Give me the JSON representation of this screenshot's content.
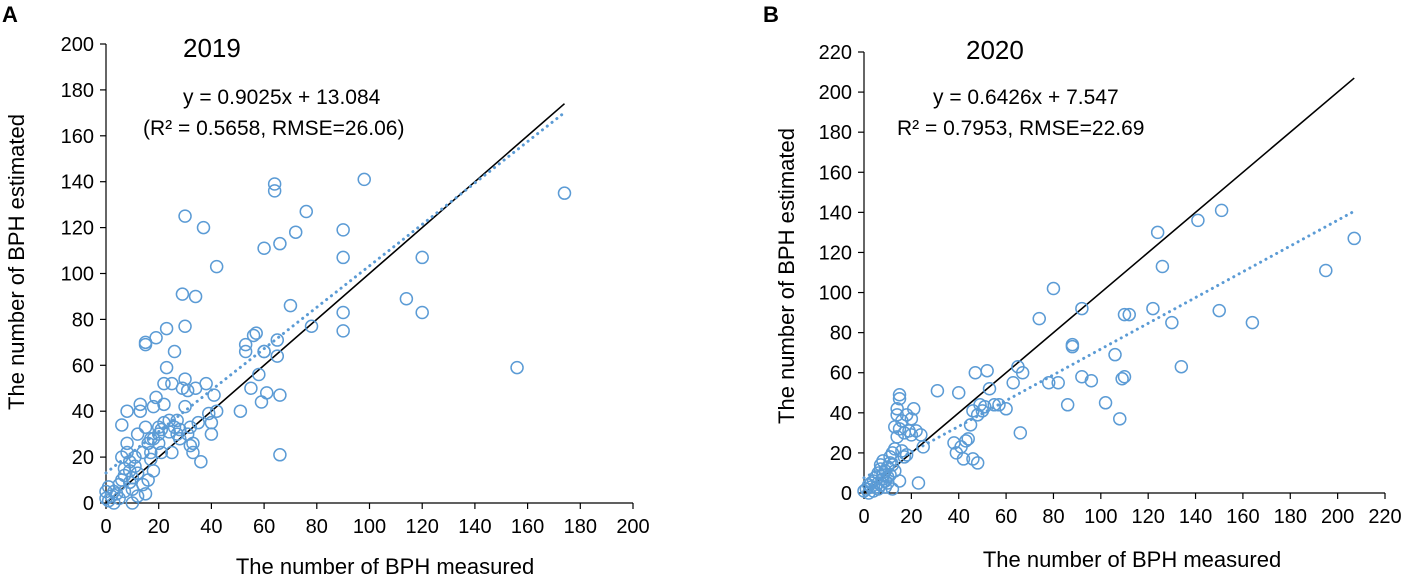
{
  "colors": {
    "marker": "#5b9bd5",
    "identity_line": "#000000",
    "axis": "#000000"
  },
  "chart_data": [
    {
      "type": "scatter",
      "panel": "A",
      "title": "2019",
      "xlabel": "The number of BPH measured",
      "ylabel": "The number of BPH estimated",
      "xlim": [
        0,
        200
      ],
      "ylim": [
        0,
        200
      ],
      "xticks": [
        "0",
        "20",
        "40",
        "60",
        "80",
        "100",
        "120",
        "140",
        "160",
        "180",
        "200"
      ],
      "yticks": [
        "0",
        "20",
        "40",
        "60",
        "80",
        "100",
        "120",
        "140",
        "160",
        "180",
        "200"
      ],
      "equation": "y = 0.9025x + 13.084",
      "stats": "(R² = 0.5658, RMSE=26.06)",
      "trend": {
        "slope": 0.9025,
        "intercept": 13.084,
        "x_range": [
          0,
          174
        ]
      },
      "identity": {
        "x_range": [
          0,
          174
        ]
      },
      "points": [
        [
          0,
          2
        ],
        [
          0,
          5
        ],
        [
          1,
          7
        ],
        [
          1,
          1
        ],
        [
          2,
          3
        ],
        [
          3,
          0
        ],
        [
          3,
          5
        ],
        [
          4,
          4
        ],
        [
          5,
          8
        ],
        [
          5,
          2
        ],
        [
          6,
          10
        ],
        [
          6,
          20
        ],
        [
          6,
          34
        ],
        [
          7,
          12
        ],
        [
          7,
          5
        ],
        [
          7,
          15
        ],
        [
          8,
          22
        ],
        [
          8,
          40
        ],
        [
          8,
          26
        ],
        [
          9,
          14
        ],
        [
          9,
          18
        ],
        [
          9,
          9
        ],
        [
          10,
          11
        ],
        [
          10,
          6
        ],
        [
          10,
          0
        ],
        [
          11,
          20
        ],
        [
          11,
          16
        ],
        [
          12,
          13
        ],
        [
          12,
          3
        ],
        [
          12,
          30
        ],
        [
          13,
          40
        ],
        [
          13,
          43
        ],
        [
          14,
          22
        ],
        [
          14,
          8
        ],
        [
          15,
          70
        ],
        [
          15,
          69
        ],
        [
          15,
          33
        ],
        [
          15,
          4
        ],
        [
          16,
          26
        ],
        [
          16,
          10
        ],
        [
          17,
          28
        ],
        [
          17,
          19
        ],
        [
          17,
          22
        ],
        [
          18,
          28
        ],
        [
          18,
          42
        ],
        [
          18,
          14
        ],
        [
          19,
          46
        ],
        [
          19,
          72
        ],
        [
          20,
          26
        ],
        [
          20,
          33
        ],
        [
          20,
          30
        ],
        [
          21,
          22
        ],
        [
          21,
          32
        ],
        [
          22,
          35
        ],
        [
          22,
          52
        ],
        [
          22,
          43
        ],
        [
          23,
          59
        ],
        [
          23,
          76
        ],
        [
          24,
          36
        ],
        [
          24,
          31
        ],
        [
          25,
          52
        ],
        [
          25,
          22
        ],
        [
          26,
          66
        ],
        [
          26,
          33
        ],
        [
          27,
          36
        ],
        [
          27,
          30
        ],
        [
          28,
          28
        ],
        [
          28,
          32
        ],
        [
          29,
          91
        ],
        [
          29,
          50
        ],
        [
          30,
          77
        ],
        [
          30,
          54
        ],
        [
          30,
          125
        ],
        [
          30,
          42
        ],
        [
          31,
          30
        ],
        [
          31,
          49
        ],
        [
          32,
          33
        ],
        [
          32,
          25
        ],
        [
          33,
          22
        ],
        [
          33,
          26
        ],
        [
          34,
          90
        ],
        [
          34,
          50
        ],
        [
          35,
          35
        ],
        [
          36,
          18
        ],
        [
          37,
          120
        ],
        [
          38,
          52
        ],
        [
          39,
          39
        ],
        [
          40,
          30
        ],
        [
          40,
          35
        ],
        [
          41,
          47
        ],
        [
          42,
          103
        ],
        [
          42,
          40
        ],
        [
          51,
          40
        ],
        [
          53,
          66
        ],
        [
          53,
          69
        ],
        [
          55,
          50
        ],
        [
          56,
          73
        ],
        [
          57,
          74
        ],
        [
          58,
          56
        ],
        [
          59,
          44
        ],
        [
          60,
          111
        ],
        [
          60,
          66
        ],
        [
          60,
          66
        ],
        [
          61,
          48
        ],
        [
          64,
          136
        ],
        [
          64,
          139
        ],
        [
          65,
          64
        ],
        [
          65,
          71
        ],
        [
          66,
          113
        ],
        [
          66,
          47
        ],
        [
          66,
          21
        ],
        [
          70,
          86
        ],
        [
          72,
          118
        ],
        [
          76,
          127
        ],
        [
          78,
          77
        ],
        [
          90,
          119
        ],
        [
          90,
          107
        ],
        [
          90,
          83
        ],
        [
          90,
          75
        ],
        [
          98,
          141
        ],
        [
          114,
          89
        ],
        [
          120,
          107
        ],
        [
          120,
          83
        ],
        [
          156,
          59
        ],
        [
          174,
          135
        ]
      ]
    },
    {
      "type": "scatter",
      "panel": "B",
      "title": "2020",
      "xlabel": "The number of BPH measured",
      "ylabel": "The number of BPH estimated",
      "xlim": [
        0,
        220
      ],
      "ylim": [
        0,
        220
      ],
      "xticks": [
        "0",
        "20",
        "40",
        "60",
        "80",
        "100",
        "120",
        "140",
        "160",
        "180",
        "200",
        "220"
      ],
      "yticks": [
        "0",
        "20",
        "40",
        "60",
        "80",
        "100",
        "120",
        "140",
        "160",
        "180",
        "200",
        "220"
      ],
      "equation": "y = 0.6426x + 7.547",
      "stats": "R² = 0.7953, RMSE=22.69",
      "trend": {
        "slope": 0.6426,
        "intercept": 7.547,
        "x_range": [
          0,
          207
        ]
      },
      "identity": {
        "x_range": [
          0,
          207
        ]
      },
      "points": [
        [
          0,
          1
        ],
        [
          1,
          2
        ],
        [
          2,
          0
        ],
        [
          2,
          4
        ],
        [
          3,
          3
        ],
        [
          3,
          5
        ],
        [
          4,
          1
        ],
        [
          4,
          6
        ],
        [
          5,
          8
        ],
        [
          5,
          3
        ],
        [
          6,
          10
        ],
        [
          6,
          2
        ],
        [
          6,
          5
        ],
        [
          7,
          12
        ],
        [
          7,
          14
        ],
        [
          7,
          4
        ],
        [
          8,
          9
        ],
        [
          8,
          7
        ],
        [
          8,
          16
        ],
        [
          9,
          11
        ],
        [
          9,
          3
        ],
        [
          9,
          6
        ],
        [
          10,
          13
        ],
        [
          10,
          8
        ],
        [
          10,
          5
        ],
        [
          11,
          15
        ],
        [
          11,
          18
        ],
        [
          11,
          9
        ],
        [
          12,
          20
        ],
        [
          12,
          14
        ],
        [
          12,
          2
        ],
        [
          13,
          22
        ],
        [
          13,
          33
        ],
        [
          13,
          11
        ],
        [
          14,
          39
        ],
        [
          14,
          42
        ],
        [
          14,
          28
        ],
        [
          15,
          47
        ],
        [
          15,
          49
        ],
        [
          15,
          32
        ],
        [
          15,
          6
        ],
        [
          16,
          21
        ],
        [
          16,
          36
        ],
        [
          17,
          30
        ],
        [
          17,
          18
        ],
        [
          18,
          19
        ],
        [
          18,
          39
        ],
        [
          19,
          31
        ],
        [
          20,
          37
        ],
        [
          20,
          29
        ],
        [
          21,
          42
        ],
        [
          22,
          31
        ],
        [
          23,
          5
        ],
        [
          24,
          29
        ],
        [
          25,
          23
        ],
        [
          31,
          51
        ],
        [
          38,
          25
        ],
        [
          39,
          20
        ],
        [
          40,
          50
        ],
        [
          41,
          23
        ],
        [
          42,
          17
        ],
        [
          43,
          26
        ],
        [
          44,
          27
        ],
        [
          45,
          34
        ],
        [
          46,
          41
        ],
        [
          46,
          17
        ],
        [
          47,
          60
        ],
        [
          48,
          39
        ],
        [
          48,
          15
        ],
        [
          49,
          44
        ],
        [
          50,
          41
        ],
        [
          51,
          43
        ],
        [
          52,
          61
        ],
        [
          53,
          52
        ],
        [
          55,
          44
        ],
        [
          57,
          44
        ],
        [
          60,
          42
        ],
        [
          63,
          55
        ],
        [
          65,
          63
        ],
        [
          66,
          30
        ],
        [
          67,
          60
        ],
        [
          74,
          87
        ],
        [
          78,
          55
        ],
        [
          80,
          102
        ],
        [
          82,
          55
        ],
        [
          86,
          44
        ],
        [
          88,
          74
        ],
        [
          88,
          73
        ],
        [
          92,
          92
        ],
        [
          92,
          58
        ],
        [
          96,
          56
        ],
        [
          102,
          45
        ],
        [
          106,
          69
        ],
        [
          108,
          37
        ],
        [
          109,
          57
        ],
        [
          110,
          58
        ],
        [
          110,
          89
        ],
        [
          112,
          89
        ],
        [
          122,
          92
        ],
        [
          124,
          130
        ],
        [
          126,
          113
        ],
        [
          130,
          85
        ],
        [
          134,
          63
        ],
        [
          141,
          136
        ],
        [
          150,
          91
        ],
        [
          151,
          141
        ],
        [
          164,
          85
        ],
        [
          195,
          111
        ],
        [
          207,
          127
        ]
      ]
    }
  ]
}
